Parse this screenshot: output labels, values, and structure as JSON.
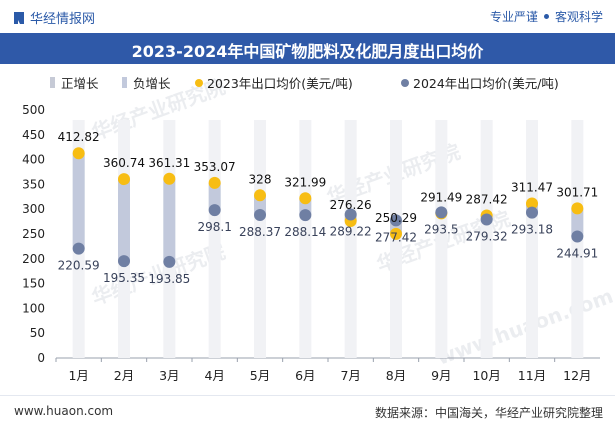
{
  "header": {
    "brand": "华经情报网",
    "tagline_left": "专业严谨",
    "tagline_right": "客观科学"
  },
  "footer": {
    "website": "www.huaon.com",
    "source": "数据来源：中国海关，华经产业研究院整理"
  },
  "watermarks": [
    "华经产业研究院",
    "华经产业研究院",
    "华经产业研究院",
    "华经产业研究院",
    "www.huaon.com"
  ],
  "colors": {
    "title_bg": "#2f59a8",
    "pos_bar": "#c6cad6",
    "neg_bar": "#c2c9dc",
    "dot_2023": "#f7bd13",
    "dot_2024": "#6f7fa3"
  },
  "chart_data": {
    "type": "line",
    "title": "2023-2024年中国矿物肥料及化肥月度出口均价",
    "categories": [
      "1月",
      "2月",
      "3月",
      "4月",
      "5月",
      "6月",
      "7月",
      "8月",
      "9月",
      "10月",
      "11月",
      "12月"
    ],
    "series": [
      {
        "name": "2023年出口均价(美元/吨)",
        "values": [
          412.82,
          360.74,
          361.31,
          353.07,
          328,
          321.99,
          276.26,
          250.29,
          291.49,
          287.42,
          311.47,
          301.71
        ],
        "labels": [
          "412.82",
          "360.74",
          "361.31",
          "353.07",
          "328",
          "321.99",
          "276.26",
          "250.29",
          "291.49",
          "287.42",
          "311.47",
          "301.71"
        ]
      },
      {
        "name": "2024年出口均价(美元/吨)",
        "values": [
          220.59,
          195.35,
          193.85,
          298.1,
          288.37,
          288.14,
          289.22,
          277.42,
          293.5,
          279.32,
          293.18,
          244.91
        ],
        "labels": [
          "220.59",
          "195.35",
          "193.85",
          "298.1",
          "288.37",
          "288.14",
          "289.22",
          "277.42",
          "293.5",
          "279.32",
          "293.18",
          "244.91"
        ]
      }
    ],
    "legend": [
      "正增长",
      "负增长",
      "2023年出口均价(美元/吨)",
      "2024年出口均价(美元/吨)"
    ],
    "legend_position": "top",
    "yticks": [
      "500",
      "450",
      "400",
      "350",
      "300",
      "250",
      "200",
      "150",
      "100",
      "50",
      "0"
    ],
    "ylim": [
      0,
      500
    ],
    "xlabel": "",
    "ylabel": ""
  }
}
